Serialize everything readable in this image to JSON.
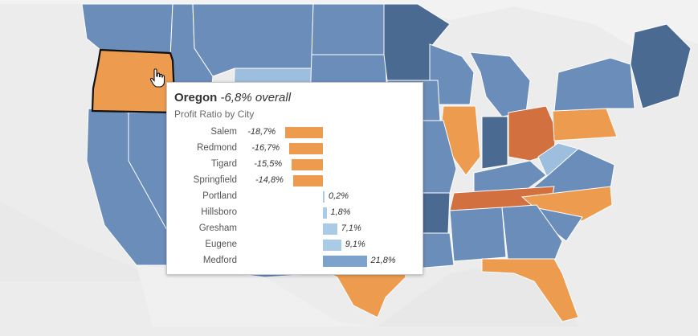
{
  "tooltip": {
    "state": "Oregon",
    "overall": "-6,8% overall",
    "subtitle": "Profit Ratio by City"
  },
  "chart_data": {
    "type": "bar",
    "title": "Profit Ratio by City",
    "categories": [
      "Salem",
      "Redmond",
      "Tigard",
      "Springfield",
      "Portland",
      "Hillsboro",
      "Gresham",
      "Eugene",
      "Medford"
    ],
    "values": [
      -18.7,
      -16.7,
      -15.5,
      -14.8,
      0.2,
      1.8,
      7.1,
      9.1,
      21.8
    ],
    "labels": [
      "-18,7%",
      "-16,7%",
      "-15,5%",
      "-14,8%",
      "0,2%",
      "1,8%",
      "7,1%",
      "9,1%",
      "21,8%"
    ]
  },
  "map": {
    "highlighted_state": "Oregon",
    "colors": {
      "orange": "#ED9C4F",
      "dark_orange": "#D2703F",
      "blue": "#6B8DB9",
      "dark_blue": "#4A6A92",
      "light_blue": "#9DBFDD",
      "neg_bar": "#ED9C4F",
      "pos_bar_light": "#A9CBE6",
      "pos_bar": "#7DA3CC",
      "background": "#EDEDED"
    }
  }
}
